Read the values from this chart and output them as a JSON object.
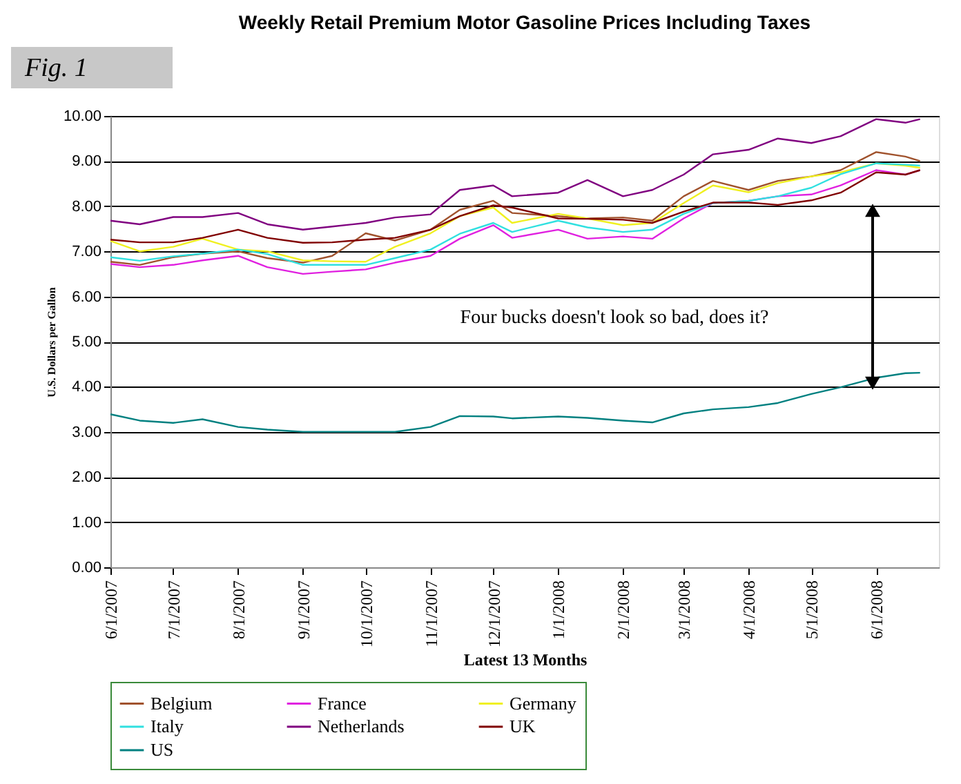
{
  "chart_data": {
    "type": "line",
    "title": "Weekly Retail Premium Motor Gasoline Prices Including Taxes",
    "xlabel": "Latest 13 Months",
    "ylabel": "U.S. Dollars per Gallon",
    "annotations": [
      "Fig. 1",
      "Four bucks doesn't look so bad, does it?"
    ],
    "x": [
      "2007-06-01",
      "2007-06-15",
      "2007-07-01",
      "2007-07-15",
      "2007-08-01",
      "2007-08-15",
      "2007-09-01",
      "2007-09-15",
      "2007-10-01",
      "2007-10-15",
      "2007-11-01",
      "2007-11-15",
      "2007-12-01",
      "2007-12-10",
      "2008-01-01",
      "2008-01-15",
      "2008-02-01",
      "2008-02-15",
      "2008-03-01",
      "2008-03-15",
      "2008-04-01",
      "2008-04-15",
      "2008-05-01",
      "2008-05-15",
      "2008-06-01",
      "2008-06-15",
      "2008-06-22"
    ],
    "series": [
      {
        "name": "Belgium",
        "color": "#a0522d",
        "values": [
          6.77,
          6.7,
          6.87,
          6.95,
          7.0,
          6.85,
          6.75,
          6.9,
          7.4,
          7.24,
          7.48,
          7.92,
          8.12,
          7.85,
          7.78,
          7.73,
          7.75,
          7.68,
          8.22,
          8.56,
          8.36,
          8.56,
          8.66,
          8.8,
          9.2,
          9.1,
          9.0
        ]
      },
      {
        "name": "France",
        "color": "#e020e0",
        "values": [
          6.72,
          6.65,
          6.7,
          6.8,
          6.9,
          6.65,
          6.5,
          6.55,
          6.6,
          6.75,
          6.9,
          7.28,
          7.58,
          7.3,
          7.48,
          7.28,
          7.33,
          7.28,
          7.73,
          8.07,
          8.12,
          8.22,
          8.26,
          8.46,
          8.8,
          8.7,
          8.8
        ]
      },
      {
        "name": "Germany",
        "color": "#f0f020",
        "values": [
          7.23,
          7.0,
          7.1,
          7.28,
          7.04,
          7.0,
          6.8,
          6.78,
          6.77,
          7.1,
          7.4,
          7.78,
          7.97,
          7.63,
          7.83,
          7.73,
          7.58,
          7.63,
          8.07,
          8.46,
          8.31,
          8.51,
          8.66,
          8.75,
          8.95,
          8.9,
          8.85
        ]
      },
      {
        "name": "Italy",
        "color": "#30e0e0",
        "values": [
          6.87,
          6.79,
          6.89,
          6.95,
          7.04,
          6.94,
          6.7,
          6.7,
          6.7,
          6.85,
          7.04,
          7.39,
          7.63,
          7.43,
          7.68,
          7.53,
          7.43,
          7.48,
          7.83,
          8.07,
          8.12,
          8.22,
          8.41,
          8.71,
          8.95,
          8.92,
          8.9
        ]
      },
      {
        "name": "Netherlands",
        "color": "#800080",
        "values": [
          7.68,
          7.6,
          7.76,
          7.76,
          7.85,
          7.6,
          7.48,
          7.55,
          7.63,
          7.75,
          7.82,
          8.36,
          8.46,
          8.22,
          8.3,
          8.58,
          8.22,
          8.36,
          8.7,
          9.15,
          9.25,
          9.5,
          9.4,
          9.55,
          9.93,
          9.85,
          9.93
        ]
      },
      {
        "name": "UK",
        "color": "#800000",
        "values": [
          7.26,
          7.2,
          7.2,
          7.3,
          7.48,
          7.3,
          7.19,
          7.2,
          7.26,
          7.3,
          7.48,
          7.78,
          8.02,
          7.97,
          7.73,
          7.72,
          7.7,
          7.63,
          7.88,
          8.08,
          8.08,
          8.03,
          8.13,
          8.3,
          8.75,
          8.7,
          8.8
        ]
      },
      {
        "name": "US",
        "color": "#008080",
        "values": [
          3.39,
          3.25,
          3.2,
          3.28,
          3.11,
          3.05,
          3.0,
          3.0,
          3.0,
          3.0,
          3.11,
          3.35,
          3.34,
          3.3,
          3.34,
          3.31,
          3.25,
          3.21,
          3.41,
          3.5,
          3.55,
          3.64,
          3.84,
          3.99,
          4.2,
          4.3,
          4.31
        ]
      }
    ],
    "xlim": [
      "2007-06-01",
      "2008-07-01"
    ],
    "xticks": [
      {
        "value": "2007-06-01",
        "label": "6/1/2007"
      },
      {
        "value": "2007-07-01",
        "label": "7/1/2007"
      },
      {
        "value": "2007-08-01",
        "label": "8/1/2007"
      },
      {
        "value": "2007-09-01",
        "label": "9/1/2007"
      },
      {
        "value": "2007-10-01",
        "label": "10/1/2007"
      },
      {
        "value": "2007-11-01",
        "label": "11/1/2007"
      },
      {
        "value": "2007-12-01",
        "label": "12/1/2007"
      },
      {
        "value": "2008-01-01",
        "label": "1/1/2008"
      },
      {
        "value": "2008-02-01",
        "label": "2/1/2008"
      },
      {
        "value": "2008-03-01",
        "label": "3/1/2008"
      },
      {
        "value": "2008-04-01",
        "label": "4/1/2008"
      },
      {
        "value": "2008-05-01",
        "label": "5/1/2008"
      },
      {
        "value": "2008-06-01",
        "label": "6/1/2008"
      }
    ],
    "ylim": [
      0,
      10
    ],
    "yticks": [
      {
        "value": 0,
        "label": "0.00"
      },
      {
        "value": 1,
        "label": "1.00"
      },
      {
        "value": 2,
        "label": "2.00"
      },
      {
        "value": 3,
        "label": "3.00"
      },
      {
        "value": 4,
        "label": "4.00"
      },
      {
        "value": 5,
        "label": "5.00"
      },
      {
        "value": 6,
        "label": "6.00"
      },
      {
        "value": 7,
        "label": "7.00"
      },
      {
        "value": 8,
        "label": "8.00"
      },
      {
        "value": 9,
        "label": "9.00"
      },
      {
        "value": 10,
        "label": "10.00"
      }
    ],
    "grid": "y",
    "legend": "bottom",
    "marker": "none",
    "line_style": "solid"
  }
}
